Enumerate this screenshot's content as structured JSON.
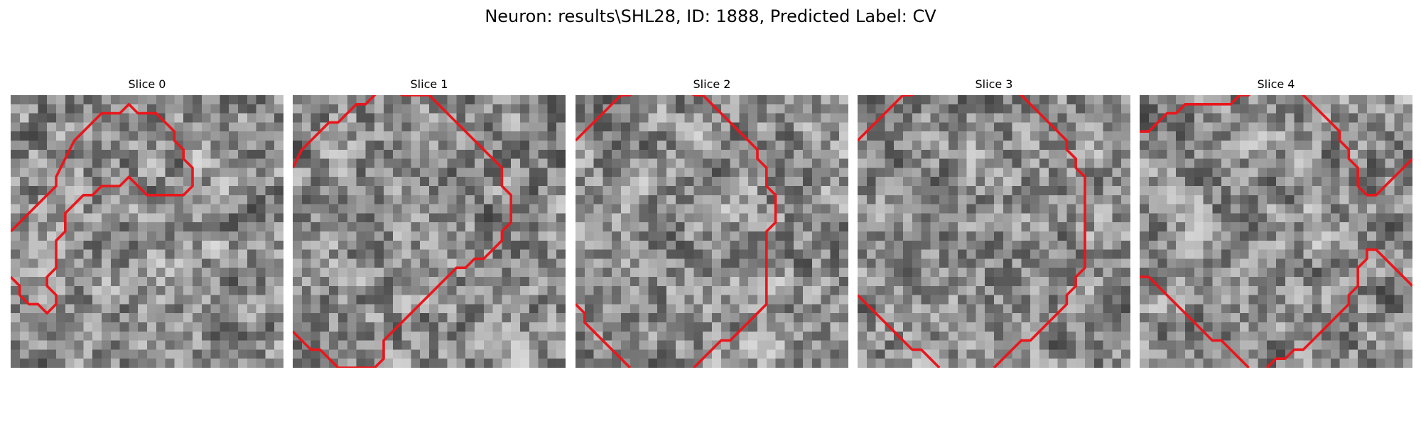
{
  "figure": {
    "title": "Neuron: results\\SHL28, ID: 1888, Predicted Label: CV"
  },
  "contour_color": "#e8171c",
  "slices": [
    {
      "title": "Slice 0",
      "seed": 11,
      "contour": [
        [
          0,
          15
        ],
        [
          2,
          13
        ],
        [
          4,
          11
        ],
        [
          5,
          10
        ],
        [
          5,
          9
        ],
        [
          6,
          7
        ],
        [
          7,
          5
        ],
        [
          8,
          4
        ],
        [
          9,
          3
        ],
        [
          10,
          2
        ],
        [
          11,
          2
        ],
        [
          12,
          2
        ],
        [
          13,
          1
        ],
        [
          14,
          2
        ],
        [
          15,
          2
        ],
        [
          16,
          2
        ],
        [
          17,
          3
        ],
        [
          18,
          4
        ],
        [
          18,
          5
        ],
        [
          19,
          6
        ],
        [
          19,
          7
        ],
        [
          20,
          8
        ],
        [
          20,
          9
        ],
        [
          20,
          10
        ],
        [
          19,
          11
        ],
        [
          18,
          11
        ],
        [
          17,
          11
        ],
        [
          16,
          11
        ],
        [
          15,
          11
        ],
        [
          14,
          10
        ],
        [
          13,
          9
        ],
        [
          12,
          10
        ],
        [
          11,
          10
        ],
        [
          10,
          10
        ],
        [
          9,
          11
        ],
        [
          8,
          11
        ],
        [
          7,
          12
        ],
        [
          6,
          13
        ],
        [
          6,
          14
        ],
        [
          6,
          15
        ],
        [
          5,
          16
        ],
        [
          5,
          17
        ],
        [
          5,
          18
        ],
        [
          5,
          19
        ],
        [
          4,
          20
        ],
        [
          4,
          21
        ],
        [
          5,
          22
        ],
        [
          5,
          23
        ],
        [
          4,
          24
        ],
        [
          3,
          23
        ],
        [
          2,
          23
        ],
        [
          1,
          22
        ],
        [
          1,
          21
        ],
        [
          0,
          20
        ]
      ]
    },
    {
      "title": "Slice 1",
      "seed": 23,
      "contour": [
        [
          0,
          8
        ],
        [
          1,
          6
        ],
        [
          2,
          5
        ],
        [
          3,
          4
        ],
        [
          4,
          3
        ],
        [
          5,
          3
        ],
        [
          6,
          2
        ],
        [
          7,
          1
        ],
        [
          8,
          1
        ],
        [
          9,
          0
        ],
        [
          10,
          -1
        ],
        [
          11,
          -1
        ],
        [
          12,
          0
        ],
        [
          13,
          0
        ],
        [
          14,
          0
        ],
        [
          15,
          0
        ],
        [
          16,
          1
        ],
        [
          17,
          2
        ],
        [
          18,
          3
        ],
        [
          19,
          4
        ],
        [
          20,
          5
        ],
        [
          21,
          6
        ],
        [
          22,
          7
        ],
        [
          23,
          8
        ],
        [
          23,
          9
        ],
        [
          23,
          10
        ],
        [
          24,
          11
        ],
        [
          24,
          12
        ],
        [
          24,
          13
        ],
        [
          24,
          14
        ],
        [
          23,
          15
        ],
        [
          23,
          16
        ],
        [
          22,
          17
        ],
        [
          21,
          18
        ],
        [
          20,
          18
        ],
        [
          19,
          19
        ],
        [
          18,
          19
        ],
        [
          17,
          20
        ],
        [
          16,
          21
        ],
        [
          15,
          22
        ],
        [
          14,
          23
        ],
        [
          13,
          24
        ],
        [
          12,
          25
        ],
        [
          11,
          26
        ],
        [
          10,
          27
        ],
        [
          10,
          28
        ],
        [
          10,
          29
        ],
        [
          9,
          30
        ],
        [
          8,
          30
        ],
        [
          7,
          30
        ],
        [
          6,
          30
        ],
        [
          5,
          30
        ],
        [
          4,
          29
        ],
        [
          3,
          28
        ],
        [
          2,
          28
        ],
        [
          1,
          27
        ],
        [
          0,
          26
        ]
      ]
    },
    {
      "title": "Slice 2",
      "seed": 37,
      "contour": [
        [
          0,
          5
        ],
        [
          1,
          4
        ],
        [
          2,
          3
        ],
        [
          3,
          2
        ],
        [
          4,
          1
        ],
        [
          5,
          0
        ],
        [
          6,
          0
        ],
        [
          7,
          -1
        ],
        [
          8,
          -1
        ],
        [
          9,
          -1
        ],
        [
          10,
          -1
        ],
        [
          11,
          -1
        ],
        [
          12,
          -1
        ],
        [
          13,
          0
        ],
        [
          14,
          0
        ],
        [
          15,
          1
        ],
        [
          16,
          2
        ],
        [
          17,
          3
        ],
        [
          18,
          4
        ],
        [
          19,
          5
        ],
        [
          20,
          6
        ],
        [
          20,
          7
        ],
        [
          21,
          8
        ],
        [
          21,
          9
        ],
        [
          21,
          10
        ],
        [
          22,
          11
        ],
        [
          22,
          12
        ],
        [
          22,
          13
        ],
        [
          22,
          14
        ],
        [
          21,
          15
        ],
        [
          21,
          16
        ],
        [
          21,
          17
        ],
        [
          21,
          18
        ],
        [
          21,
          19
        ],
        [
          21,
          20
        ],
        [
          21,
          21
        ],
        [
          21,
          22
        ],
        [
          21,
          23
        ],
        [
          20,
          24
        ],
        [
          19,
          25
        ],
        [
          18,
          26
        ],
        [
          17,
          27
        ],
        [
          16,
          27
        ],
        [
          15,
          28
        ],
        [
          14,
          29
        ],
        [
          13,
          30
        ]
      ]
    },
    {
      "title": "Slice 3",
      "seed": 53,
      "contour": [
        [
          0,
          5
        ],
        [
          1,
          4
        ],
        [
          2,
          3
        ],
        [
          3,
          2
        ],
        [
          4,
          1
        ],
        [
          5,
          0
        ],
        [
          6,
          0
        ],
        [
          7,
          -1
        ],
        [
          8,
          -1
        ],
        [
          9,
          -1
        ],
        [
          10,
          -1
        ],
        [
          11,
          -1
        ],
        [
          12,
          -1
        ],
        [
          13,
          -1
        ],
        [
          14,
          -1
        ],
        [
          15,
          -1
        ],
        [
          16,
          -1
        ],
        [
          17,
          -1
        ],
        [
          18,
          0
        ],
        [
          19,
          1
        ],
        [
          20,
          2
        ],
        [
          21,
          3
        ],
        [
          22,
          4
        ],
        [
          23,
          5
        ],
        [
          23,
          6
        ],
        [
          24,
          7
        ],
        [
          24,
          8
        ],
        [
          25,
          9
        ],
        [
          25,
          10
        ],
        [
          25,
          11
        ],
        [
          25,
          12
        ],
        [
          25,
          13
        ],
        [
          25,
          14
        ],
        [
          25,
          15
        ],
        [
          25,
          16
        ],
        [
          25,
          17
        ],
        [
          25,
          18
        ],
        [
          25,
          19
        ],
        [
          24,
          20
        ],
        [
          24,
          21
        ],
        [
          23,
          22
        ],
        [
          23,
          23
        ],
        [
          22,
          24
        ],
        [
          21,
          25
        ],
        [
          20,
          26
        ],
        [
          19,
          27
        ],
        [
          18,
          27
        ],
        [
          17,
          28
        ],
        [
          16,
          29
        ],
        [
          15,
          30
        ]
      ]
    },
    {
      "title": "Slice 4",
      "seed": 71,
      "contour": [
        [
          0,
          4
        ],
        [
          1,
          4
        ],
        [
          2,
          3
        ],
        [
          3,
          2
        ],
        [
          4,
          2
        ],
        [
          5,
          1
        ],
        [
          6,
          1
        ],
        [
          7,
          1
        ],
        [
          8,
          1
        ],
        [
          9,
          1
        ],
        [
          10,
          1
        ],
        [
          11,
          0
        ],
        [
          12,
          0
        ],
        [
          13,
          -1
        ],
        [
          14,
          -1
        ],
        [
          15,
          -1
        ],
        [
          16,
          -1
        ],
        [
          17,
          -1
        ],
        [
          18,
          0
        ],
        [
          19,
          1
        ],
        [
          20,
          2
        ],
        [
          21,
          3
        ],
        [
          22,
          4
        ],
        [
          22,
          5
        ],
        [
          23,
          6
        ],
        [
          23,
          7
        ],
        [
          24,
          8
        ],
        [
          24,
          9
        ],
        [
          24,
          10
        ],
        [
          25,
          11
        ],
        [
          26,
          11
        ],
        [
          27,
          10
        ],
        [
          28,
          9
        ],
        [
          29,
          8
        ],
        [
          30,
          7
        ]
      ]
    }
  ],
  "extra_segments": [
    {
      "slice": 3,
      "points": [
        [
          0,
          22
        ],
        [
          1,
          23
        ],
        [
          2,
          24
        ],
        [
          3,
          25
        ],
        [
          4,
          26
        ],
        [
          5,
          27
        ],
        [
          6,
          28
        ],
        [
          7,
          28
        ],
        [
          8,
          29
        ],
        [
          9,
          30
        ]
      ]
    },
    {
      "slice": 4,
      "points": [
        [
          0,
          20
        ],
        [
          1,
          20
        ],
        [
          2,
          21
        ],
        [
          3,
          22
        ],
        [
          4,
          23
        ],
        [
          5,
          24
        ],
        [
          6,
          25
        ],
        [
          7,
          26
        ],
        [
          8,
          27
        ],
        [
          9,
          27
        ],
        [
          10,
          28
        ],
        [
          11,
          29
        ],
        [
          12,
          30
        ]
      ]
    },
    {
      "slice": 4,
      "points": [
        [
          14,
          30
        ],
        [
          15,
          29
        ],
        [
          16,
          29
        ],
        [
          17,
          28
        ],
        [
          18,
          28
        ],
        [
          19,
          27
        ],
        [
          20,
          26
        ],
        [
          21,
          25
        ],
        [
          22,
          24
        ],
        [
          23,
          23
        ],
        [
          23,
          22
        ],
        [
          24,
          21
        ],
        [
          24,
          20
        ],
        [
          24,
          19
        ],
        [
          25,
          18
        ],
        [
          25,
          17
        ],
        [
          26,
          17
        ],
        [
          27,
          18
        ],
        [
          28,
          19
        ],
        [
          29,
          20
        ],
        [
          30,
          21
        ]
      ]
    },
    {
      "slice": 2,
      "points": [
        [
          0,
          23
        ],
        [
          1,
          24
        ],
        [
          1,
          25
        ],
        [
          2,
          26
        ],
        [
          3,
          27
        ],
        [
          4,
          28
        ],
        [
          5,
          29
        ],
        [
          6,
          30
        ]
      ]
    }
  ]
}
